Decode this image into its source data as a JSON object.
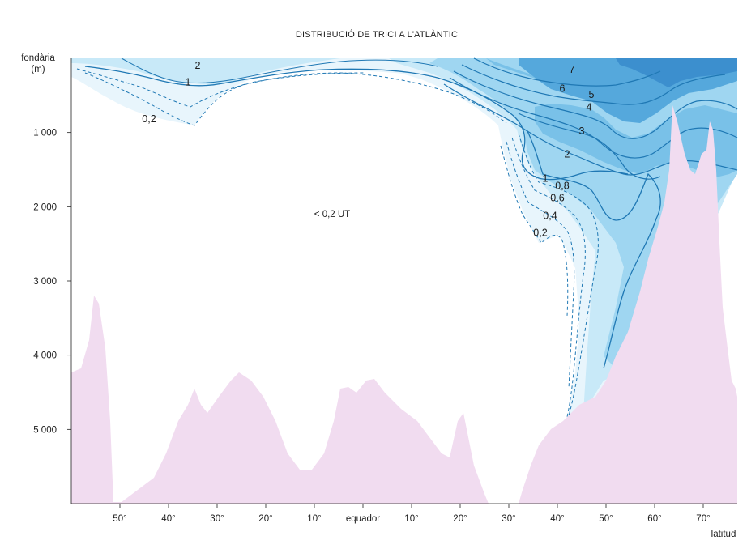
{
  "chart_data": {
    "type": "area",
    "title": "DISTRIBUCIÓ DE TRICI A L'ATLÀNTIC",
    "ylabel_line1": "fondària",
    "ylabel_line2": "(m)",
    "xlabel": "latitud",
    "x_ticks": [
      {
        "lat": -50,
        "label": "50°"
      },
      {
        "lat": -40,
        "label": "40°"
      },
      {
        "lat": -30,
        "label": "30°"
      },
      {
        "lat": -20,
        "label": "20°"
      },
      {
        "lat": -10,
        "label": "10°"
      },
      {
        "lat": 0,
        "label": "equador"
      },
      {
        "lat": 10,
        "label": "10°"
      },
      {
        "lat": 20,
        "label": "20°"
      },
      {
        "lat": 30,
        "label": "30°"
      },
      {
        "lat": 40,
        "label": "40°"
      },
      {
        "lat": 50,
        "label": "50°"
      },
      {
        "lat": 60,
        "label": "60°"
      },
      {
        "lat": 70,
        "label": "70°"
      }
    ],
    "y_ticks": [
      {
        "depth": 1000,
        "label": "1 000"
      },
      {
        "depth": 2000,
        "label": "2 000"
      },
      {
        "depth": 3000,
        "label": "3 000"
      },
      {
        "depth": 4000,
        "label": "4 000"
      },
      {
        "depth": 5000,
        "label": "5 000"
      }
    ],
    "xlim": [
      -60,
      77
    ],
    "ylim": [
      0,
      6000
    ],
    "units": "UT",
    "background_label": "< 0,2 UT",
    "colors": {
      "seafloor": "#f1dcf0",
      "water": "#ffffff",
      "band_0_2": "#e8f5fc",
      "band_0_6": "#c8e9f8",
      "band_1": "#9fd6f1",
      "band_3": "#79c1e8",
      "band_5": "#55a8dc",
      "band_7": "#3c8fce",
      "contour": "#1f78b4"
    },
    "contour_labels": [
      {
        "text": "2",
        "lat": -34,
        "depth": 100
      },
      {
        "text": "1",
        "lat": -36,
        "depth": 320
      },
      {
        "text": "0,2",
        "lat": -44,
        "depth": 820
      },
      {
        "text": "7",
        "lat": 43,
        "depth": 150
      },
      {
        "text": "6",
        "lat": 41,
        "depth": 410
      },
      {
        "text": "5",
        "lat": 47,
        "depth": 490
      },
      {
        "text": "4",
        "lat": 46.5,
        "depth": 660
      },
      {
        "text": "3",
        "lat": 45,
        "depth": 980
      },
      {
        "text": "2",
        "lat": 42,
        "depth": 1290
      },
      {
        "text": "1",
        "lat": 37.5,
        "depth": 1620
      },
      {
        "text": "0,8",
        "lat": 41,
        "depth": 1720
      },
      {
        "text": "0,6",
        "lat": 40,
        "depth": 1880
      },
      {
        "text": "0,4",
        "lat": 38.5,
        "depth": 2120
      },
      {
        "text": "0,2",
        "lat": 36.5,
        "depth": 2350
      }
    ]
  }
}
